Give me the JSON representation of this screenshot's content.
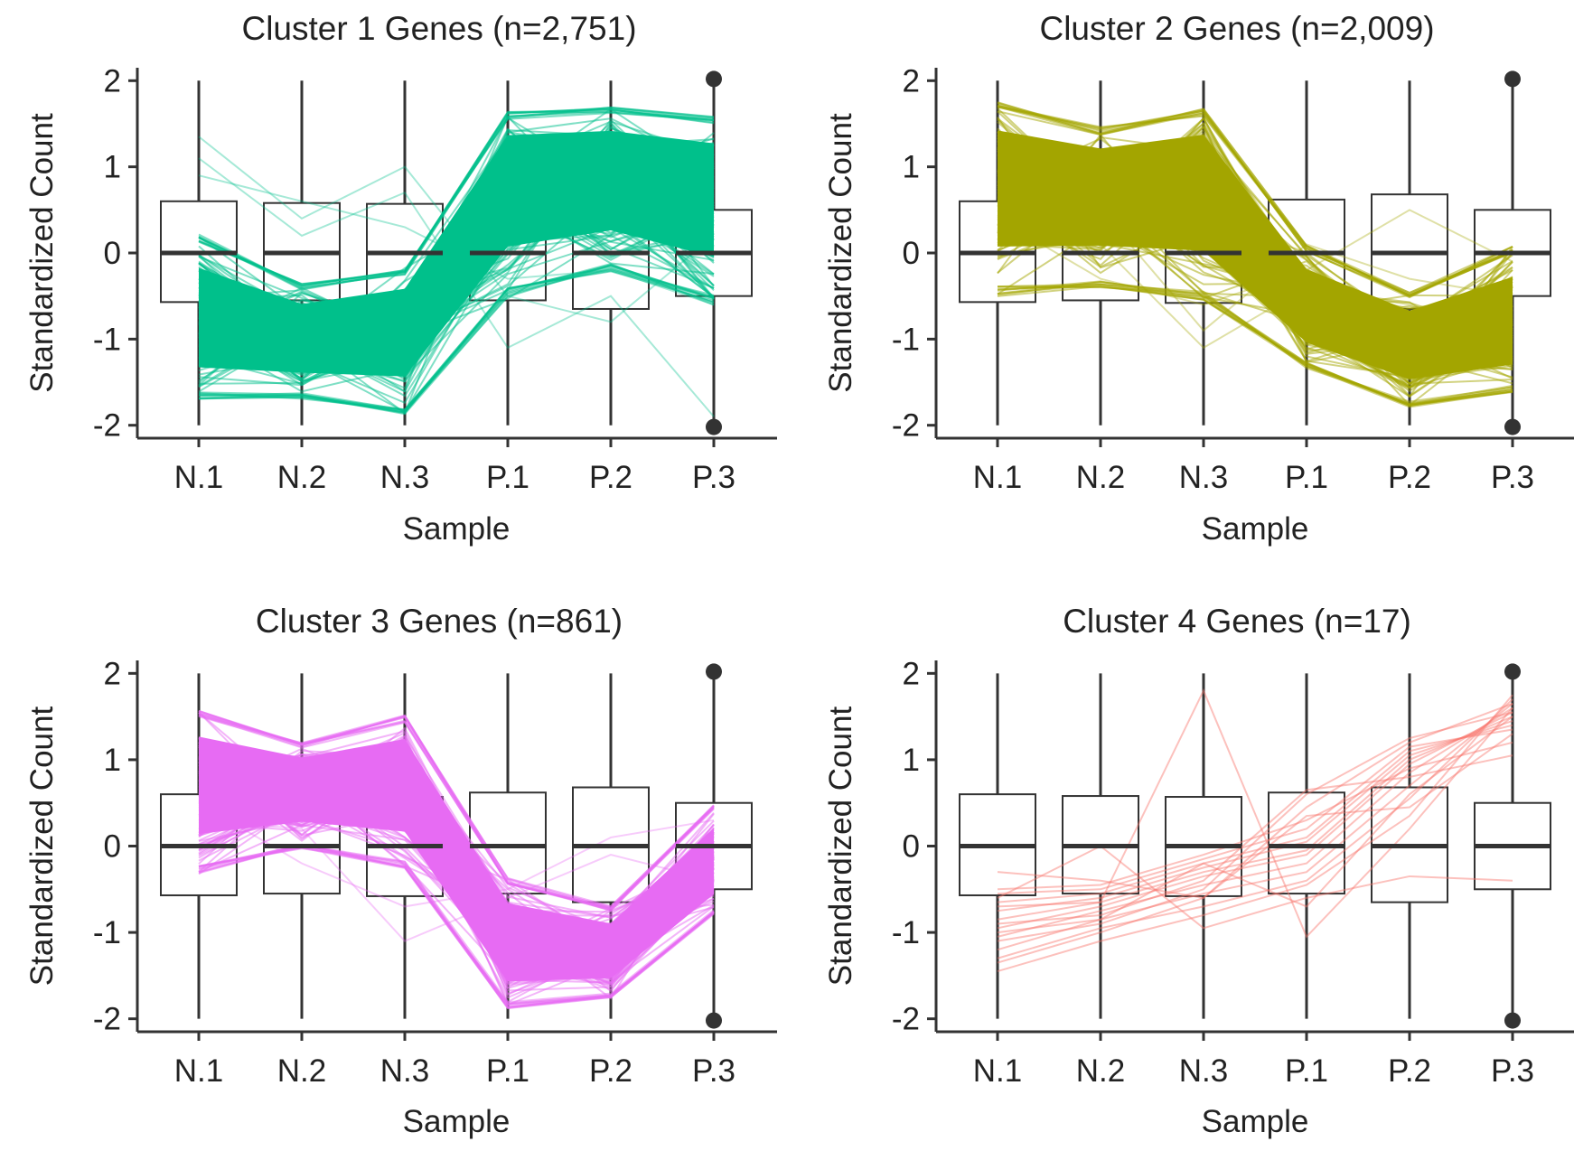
{
  "figure": {
    "panels_label": "cluster-profile-panels"
  },
  "chart_data": [
    {
      "type": "line",
      "title": "Cluster 1 Genes (n=2,751)",
      "xlabel": "Sample",
      "ylabel": "Standardized Count",
      "categories": [
        "N.1",
        "N.2",
        "N.3",
        "P.1",
        "P.2",
        "P.3"
      ],
      "yticks": [
        -2,
        -1,
        0,
        1,
        2
      ],
      "ylim": [
        -2.15,
        2.15
      ],
      "line_color": "#00C08B",
      "line_band": {
        "lower": [
          -1.8,
          -1.75,
          -1.95,
          -0.6,
          -0.3,
          -0.7
        ],
        "upper": [
          0.3,
          -0.3,
          -0.1,
          1.75,
          1.8,
          1.7
        ],
        "mean": [
          -0.75,
          -0.95,
          -0.8,
          0.9,
          0.95,
          0.75
        ]
      },
      "outlier_lines": [
        [
          1.35,
          0.4,
          1.0,
          -0.5,
          -0.8,
          0.2
        ],
        [
          0.9,
          0.6,
          0.3,
          -0.3,
          -0.2,
          -0.6
        ],
        [
          1.1,
          0.2,
          0.7,
          -1.1,
          -0.5,
          -1.9
        ]
      ],
      "boxes": [
        {
          "q1": -0.57,
          "median": 0.0,
          "q3": 0.6,
          "min": -2.0,
          "max": 2.0
        },
        {
          "q1": -0.55,
          "median": 0.0,
          "q3": 0.58,
          "min": -2.0,
          "max": 2.0
        },
        {
          "q1": -0.58,
          "median": 0.0,
          "q3": 0.57,
          "min": -2.0,
          "max": 2.0
        },
        {
          "q1": -0.55,
          "median": 0.0,
          "q3": 0.62,
          "min": -2.0,
          "max": 2.0
        },
        {
          "q1": -0.65,
          "median": 0.0,
          "q3": 0.68,
          "min": -2.0,
          "max": 2.0
        },
        {
          "q1": -0.5,
          "median": 0.0,
          "q3": 0.5,
          "min": -2.0,
          "max": 2.0,
          "outliers": [
            2.02,
            -2.02
          ]
        }
      ]
    },
    {
      "type": "line",
      "title": "Cluster 2 Genes (n=2,009)",
      "xlabel": "Sample",
      "ylabel": "Standardized Count",
      "categories": [
        "N.1",
        "N.2",
        "N.3",
        "P.1",
        "P.2",
        "P.3"
      ],
      "yticks": [
        -2,
        -1,
        0,
        1,
        2
      ],
      "ylim": [
        -2.15,
        2.15
      ],
      "line_color": "#A3A500",
      "line_band": {
        "lower": [
          -0.6,
          -0.5,
          -0.65,
          -1.4,
          -1.85,
          -1.7
        ],
        "upper": [
          1.85,
          1.55,
          1.8,
          0.15,
          -0.4,
          0.15
        ],
        "mean": [
          0.9,
          0.8,
          0.85,
          -0.6,
          -1.0,
          -0.8
        ]
      },
      "outlier_lines": [
        [
          0.4,
          -0.3,
          -0.6,
          -0.2,
          0.5,
          -0.1
        ],
        [
          0.6,
          0.1,
          -1.1,
          -0.4,
          -0.6,
          -1.0
        ],
        [
          0.2,
          0.5,
          -0.9,
          0.1,
          -0.3,
          -0.5
        ]
      ],
      "boxes": [
        {
          "q1": -0.57,
          "median": 0.0,
          "q3": 0.6,
          "min": -2.0,
          "max": 2.0
        },
        {
          "q1": -0.55,
          "median": 0.0,
          "q3": 0.58,
          "min": -2.0,
          "max": 2.0
        },
        {
          "q1": -0.58,
          "median": 0.0,
          "q3": 0.57,
          "min": -2.0,
          "max": 2.0
        },
        {
          "q1": -0.55,
          "median": 0.0,
          "q3": 0.62,
          "min": -2.0,
          "max": 2.0
        },
        {
          "q1": -0.65,
          "median": 0.0,
          "q3": 0.68,
          "min": -2.0,
          "max": 2.0
        },
        {
          "q1": -0.5,
          "median": 0.0,
          "q3": 0.5,
          "min": -2.0,
          "max": 2.0,
          "outliers": [
            2.02,
            -2.02
          ]
        }
      ]
    },
    {
      "type": "line",
      "title": "Cluster 3 Genes (n=861)",
      "xlabel": "Sample",
      "ylabel": "Standardized Count",
      "categories": [
        "N.1",
        "N.2",
        "N.3",
        "P.1",
        "P.2",
        "P.3"
      ],
      "yticks": [
        -2,
        -1,
        0,
        1,
        2
      ],
      "ylim": [
        -2.15,
        2.15
      ],
      "line_color": "#E76BF3",
      "line_band": {
        "lower": [
          -0.4,
          -0.1,
          -0.35,
          -1.95,
          -1.8,
          -0.85
        ],
        "upper": [
          1.65,
          1.25,
          1.6,
          -0.3,
          -0.65,
          0.55
        ],
        "mean": [
          0.8,
          0.75,
          0.8,
          -1.1,
          -1.2,
          -0.2
        ]
      },
      "outlier_lines": [
        [
          0.3,
          0.2,
          -1.1,
          -0.6,
          -0.1,
          -0.4
        ],
        [
          0.5,
          -0.2,
          -0.7,
          -0.5,
          0.1,
          0.3
        ]
      ],
      "boxes": [
        {
          "q1": -0.57,
          "median": 0.0,
          "q3": 0.6,
          "min": -2.0,
          "max": 2.0
        },
        {
          "q1": -0.55,
          "median": 0.0,
          "q3": 0.58,
          "min": -2.0,
          "max": 2.0
        },
        {
          "q1": -0.58,
          "median": 0.0,
          "q3": 0.57,
          "min": -2.0,
          "max": 2.0
        },
        {
          "q1": -0.55,
          "median": 0.0,
          "q3": 0.62,
          "min": -2.0,
          "max": 2.0
        },
        {
          "q1": -0.65,
          "median": 0.0,
          "q3": 0.68,
          "min": -2.0,
          "max": 2.0
        },
        {
          "q1": -0.5,
          "median": 0.0,
          "q3": 0.5,
          "min": -2.0,
          "max": 2.0,
          "outliers": [
            2.02,
            -2.02
          ]
        }
      ]
    },
    {
      "type": "line",
      "title": "Cluster 4 Genes (n=17)",
      "xlabel": "Sample",
      "ylabel": "Standardized Count",
      "categories": [
        "N.1",
        "N.2",
        "N.3",
        "P.1",
        "P.2",
        "P.3"
      ],
      "yticks": [
        -2,
        -1,
        0,
        1,
        2
      ],
      "ylim": [
        -2.15,
        2.15
      ],
      "line_color": "#F8766D",
      "lines": [
        [
          -1.45,
          -1.1,
          -0.8,
          -0.45,
          0.35,
          1.75
        ],
        [
          -1.3,
          -0.95,
          -0.7,
          -0.4,
          0.55,
          1.7
        ],
        [
          -1.2,
          -0.85,
          -0.55,
          -0.3,
          0.7,
          1.65
        ],
        [
          -1.05,
          -0.75,
          -0.45,
          -0.2,
          0.85,
          1.6
        ],
        [
          -0.95,
          -0.7,
          -0.35,
          -0.1,
          0.95,
          1.55
        ],
        [
          -0.85,
          -0.65,
          -0.3,
          -0.05,
          1.0,
          1.5
        ],
        [
          -0.75,
          -0.6,
          -0.25,
          0.05,
          1.05,
          1.45
        ],
        [
          -0.65,
          -0.55,
          -0.2,
          0.1,
          1.1,
          1.4
        ],
        [
          -0.55,
          -0.5,
          -0.15,
          0.2,
          1.15,
          1.35
        ],
        [
          -0.5,
          -0.45,
          -0.1,
          0.3,
          0.9,
          1.2
        ],
        [
          -1.35,
          -1.0,
          -0.6,
          0.45,
          1.2,
          1.65
        ],
        [
          -1.1,
          -0.9,
          -0.5,
          0.6,
          1.25,
          1.55
        ],
        [
          -0.9,
          -0.8,
          -0.4,
          0.65,
          0.8,
          1.05
        ],
        [
          -0.7,
          -0.65,
          1.8,
          -1.05,
          0.2,
          1.6
        ],
        [
          -0.6,
          0.0,
          -0.95,
          -0.6,
          -0.35,
          -0.4
        ],
        [
          -0.3,
          -0.4,
          -0.6,
          0.35,
          0.45,
          1.3
        ],
        [
          -1.0,
          -0.85,
          -0.2,
          -0.7,
          0.6,
          1.5
        ]
      ],
      "boxes": [
        {
          "q1": -0.57,
          "median": 0.0,
          "q3": 0.6,
          "min": -2.0,
          "max": 2.0
        },
        {
          "q1": -0.55,
          "median": 0.0,
          "q3": 0.58,
          "min": -2.0,
          "max": 2.0
        },
        {
          "q1": -0.58,
          "median": 0.0,
          "q3": 0.57,
          "min": -2.0,
          "max": 2.0
        },
        {
          "q1": -0.55,
          "median": 0.0,
          "q3": 0.62,
          "min": -2.0,
          "max": 2.0
        },
        {
          "q1": -0.65,
          "median": 0.0,
          "q3": 0.68,
          "min": -2.0,
          "max": 2.0
        },
        {
          "q1": -0.5,
          "median": 0.0,
          "q3": 0.5,
          "min": -2.0,
          "max": 2.0,
          "outliers": [
            2.02,
            -2.02
          ]
        }
      ]
    }
  ]
}
